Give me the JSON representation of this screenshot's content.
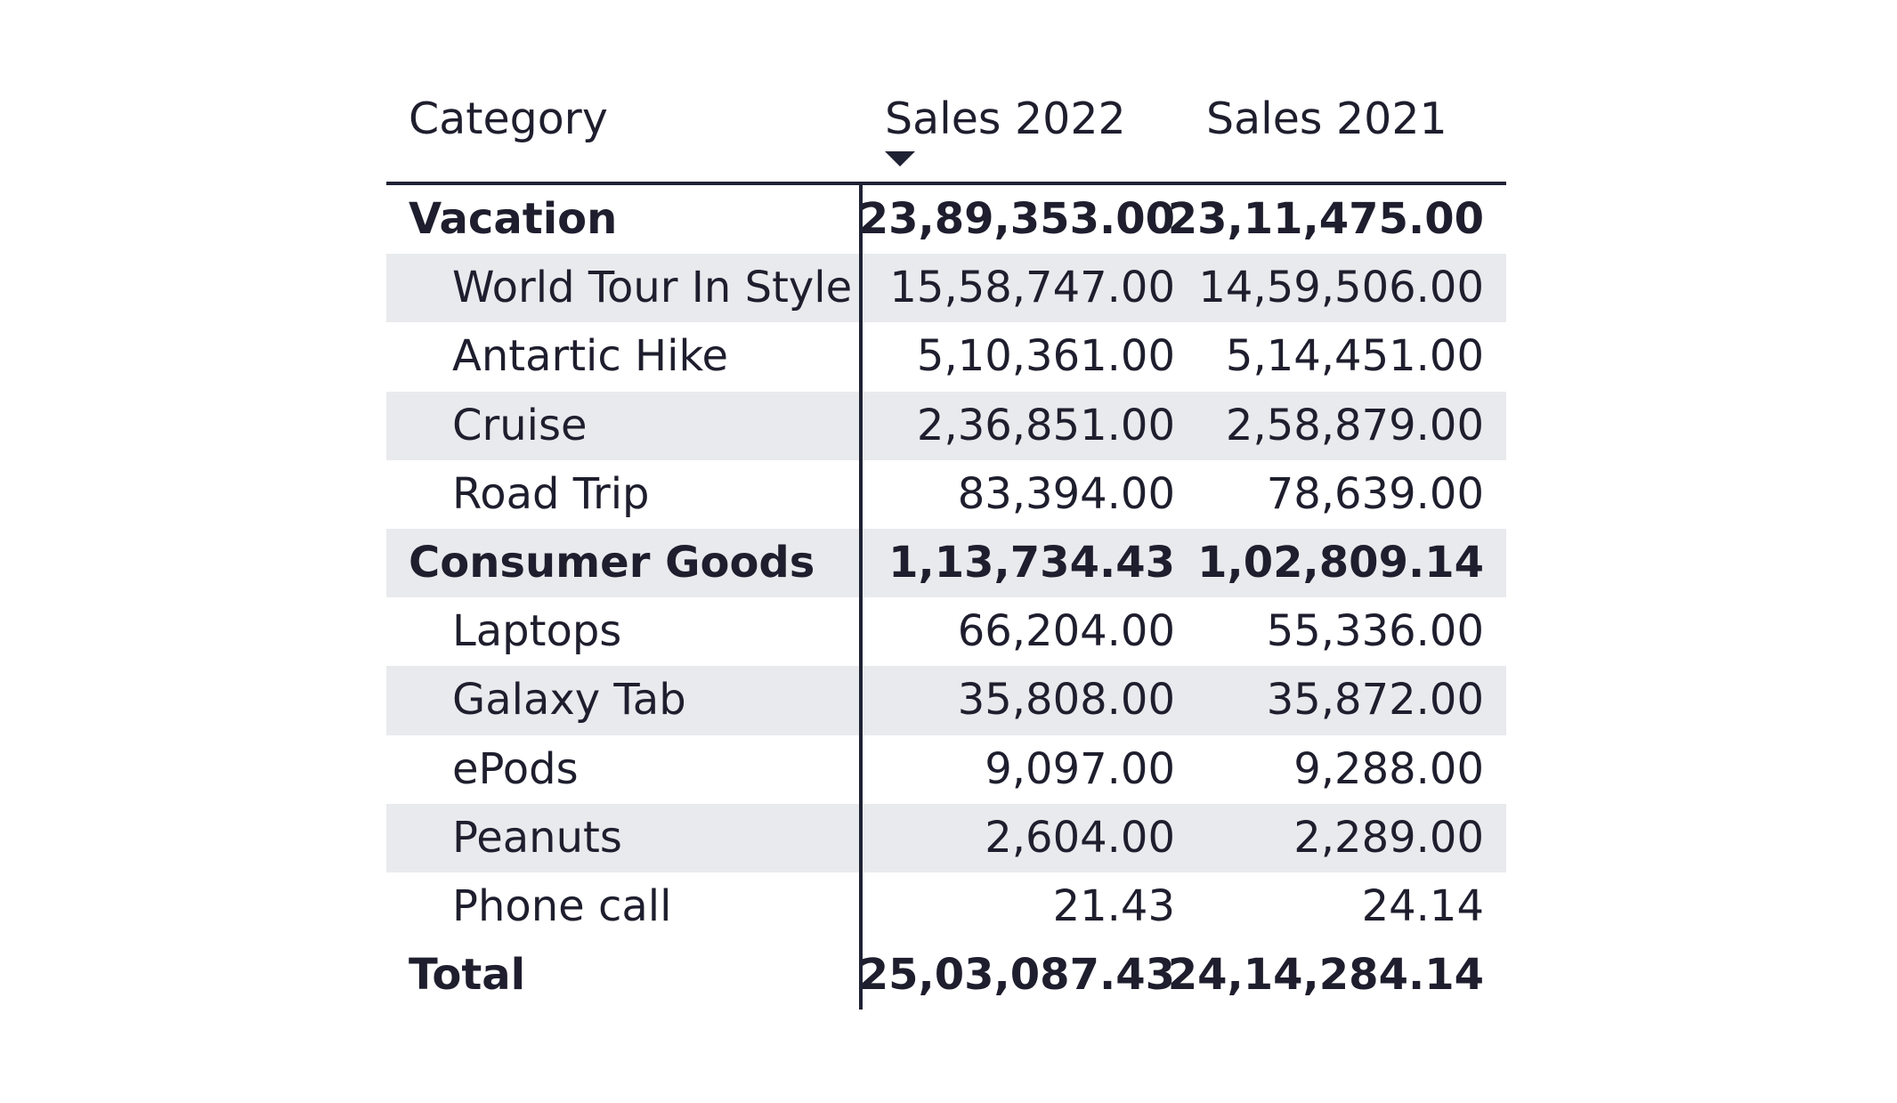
{
  "columns": {
    "category": "Category",
    "sales_2022": "Sales 2022",
    "sales_2021": "Sales 2021"
  },
  "sort": {
    "column": "sales_2022",
    "direction": "descending",
    "icon": "sort-descending-icon"
  },
  "rows": [
    {
      "label": "Vacation",
      "level": "group",
      "sales_2022": "23,89,353.00",
      "sales_2021": "23,11,475.00"
    },
    {
      "label": "World Tour In Style",
      "level": "item",
      "sales_2022": "15,58,747.00",
      "sales_2021": "14,59,506.00"
    },
    {
      "label": "Antartic Hike",
      "level": "item",
      "sales_2022": "5,10,361.00",
      "sales_2021": "5,14,451.00"
    },
    {
      "label": "Cruise",
      "level": "item",
      "sales_2022": "2,36,851.00",
      "sales_2021": "2,58,879.00"
    },
    {
      "label": "Road Trip",
      "level": "item",
      "sales_2022": "83,394.00",
      "sales_2021": "78,639.00"
    },
    {
      "label": "Consumer Goods",
      "level": "group",
      "sales_2022": "1,13,734.43",
      "sales_2021": "1,02,809.14"
    },
    {
      "label": "Laptops",
      "level": "item",
      "sales_2022": "66,204.00",
      "sales_2021": "55,336.00"
    },
    {
      "label": "Galaxy Tab",
      "level": "item",
      "sales_2022": "35,808.00",
      "sales_2021": "35,872.00"
    },
    {
      "label": "ePods",
      "level": "item",
      "sales_2022": "9,097.00",
      "sales_2021": "9,288.00"
    },
    {
      "label": "Peanuts",
      "level": "item",
      "sales_2022": "2,604.00",
      "sales_2021": "2,289.00"
    },
    {
      "label": "Phone call",
      "level": "item",
      "sales_2022": "21.43",
      "sales_2021": "24.14"
    }
  ],
  "total": {
    "label": "Total",
    "sales_2022": "25,03,087.43",
    "sales_2021": "24,14,284.14"
  },
  "colors": {
    "text": "#1e1e2e",
    "rule": "#1f2233",
    "band": "#e9eaed",
    "background": "#ffffff"
  }
}
